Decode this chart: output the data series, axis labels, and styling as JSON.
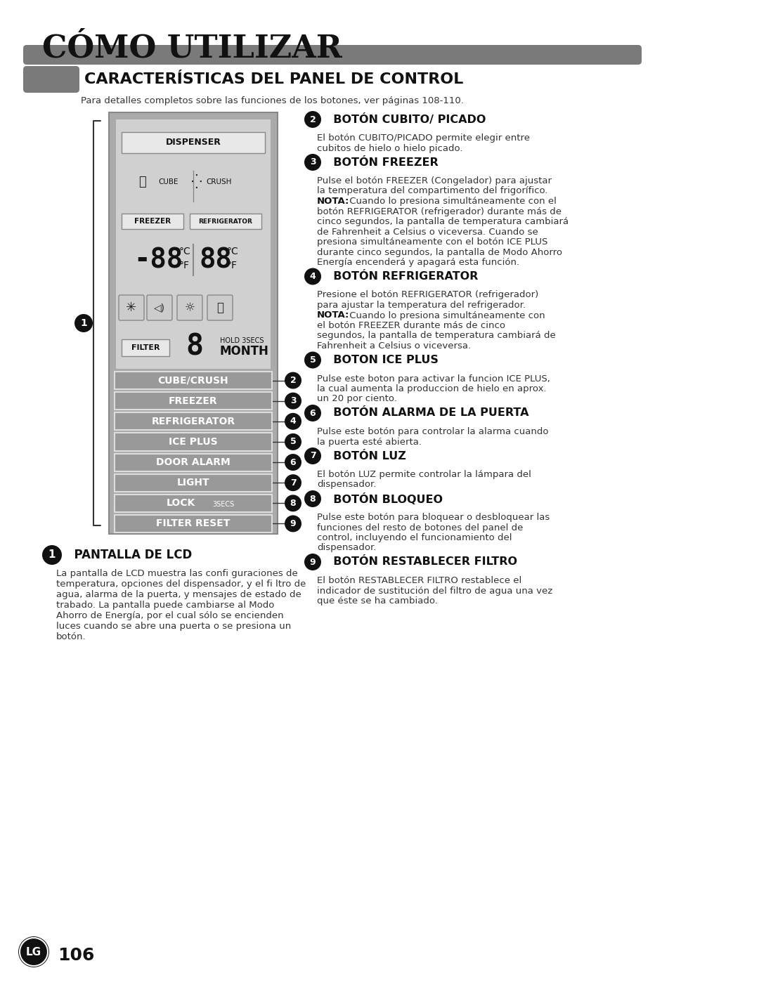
{
  "page_bg": "#ffffff",
  "header_title": "CÓMO UTILIZAR",
  "header_bar_color": "#7a7a7a",
  "section_badge_color": "#7a7a7a",
  "section_title": "CARACTERÍSTICAS DEL PANEL DE CONTROL",
  "subtitle": "Para detalles completos sobre las funciones de los botones, ver páginas 108-110.",
  "button_labels": [
    "CUBE/CRUSH",
    "FREEZER",
    "REFRIGERATOR",
    "ICE PLUS",
    "DOOR ALARM",
    "LIGHT",
    "LOCK3SECS",
    "FILTER RESET"
  ],
  "button_numbers": [
    "2",
    "3",
    "4",
    "5",
    "6",
    "7",
    "8",
    "9"
  ],
  "sections": [
    {
      "num": "2",
      "title": "BOTÓN CUBITO/ PICADO",
      "lines": [
        {
          "text": "El botón CUBITO/PICADO permite elegir entre",
          "bold": false
        },
        {
          "text": "cubitos de hielo o hielo picado.",
          "bold": false
        }
      ]
    },
    {
      "num": "3",
      "title": "BOTÓN FREEZER",
      "lines": [
        {
          "text": "Pulse el botón FREEZER (Congelador) para ajustar",
          "bold": false
        },
        {
          "text": "la temperatura del compartimento del frigorífico.",
          "bold": false
        },
        {
          "text": "NOTA: Cuando lo presiona simultáneamente con el",
          "bold": false,
          "nota": true
        },
        {
          "text": "botón REFRIGERATOR (refrigerador) durante más de",
          "bold": false
        },
        {
          "text": "cinco segundos, la pantalla de temperatura cambiará",
          "bold": false
        },
        {
          "text": "de Fahrenheit a Celsius o viceversa. Cuando se",
          "bold": false
        },
        {
          "text": "presiona simultáneamente con el botón ICE PLUS",
          "bold": false
        },
        {
          "text": "durante cinco segundos, la pantalla de Modo Ahorro",
          "bold": false
        },
        {
          "text": "Energía encenderá y apagará esta función.",
          "bold": false
        }
      ]
    },
    {
      "num": "4",
      "title": "BOTÓN REFRIGERATOR",
      "lines": [
        {
          "text": "Presione el botón REFRIGERATOR (refrigerador)",
          "bold": false
        },
        {
          "text": "para ajustar la temperatura del refrigerador.",
          "bold": false
        },
        {
          "text": "NOTA: Cuando lo presiona simultáneamente con",
          "bold": false,
          "nota": true
        },
        {
          "text": "el botón FREEZER durante más de cinco",
          "bold": false
        },
        {
          "text": "segundos, la pantalla de temperatura cambiará de",
          "bold": false
        },
        {
          "text": "Fahrenheit a Celsius o viceversa.",
          "bold": false
        }
      ]
    },
    {
      "num": "5",
      "title": "BOTON ICE PLUS",
      "lines": [
        {
          "text": "Pulse este boton para activar la funcion ICE PLUS,",
          "bold": false
        },
        {
          "text": "la cual aumenta la produccion de hielo en aprox.",
          "bold": false
        },
        {
          "text": "un 20 por ciento.",
          "bold": false
        }
      ]
    },
    {
      "num": "6",
      "title": "BOTÓN ALARMA DE LA PUERTA",
      "lines": [
        {
          "text": "Pulse este botón para controlar la alarma cuando",
          "bold": false
        },
        {
          "text": "la puerta esté abierta.",
          "bold": false
        }
      ]
    },
    {
      "num": "7",
      "title": "BOTÓN LUZ",
      "lines": [
        {
          "text": "El botón LUZ permite controlar la lámpara del",
          "bold": false
        },
        {
          "text": "dispensador.",
          "bold": false
        }
      ]
    },
    {
      "num": "8",
      "title": "BOTÓN BLOQUEO",
      "lines": [
        {
          "text": "Pulse este botón para bloquear o desbloquear las",
          "bold": false
        },
        {
          "text": "funciones del resto de botones del panel de",
          "bold": false
        },
        {
          "text": "control, incluyendo el funcionamiento del",
          "bold": false
        },
        {
          "text": "dispensador.",
          "bold": false
        }
      ]
    },
    {
      "num": "9",
      "title": "BOTÓN RESTABLECER FILTRO",
      "lines": [
        {
          "text": "El botón RESTABLECER FILTRO restablece el",
          "bold": false
        },
        {
          "text": "indicador de sustitución del filtro de agua una vez",
          "bold": false
        },
        {
          "text": "que éste se ha cambiado.",
          "bold": false
        }
      ]
    }
  ],
  "bottom_section": {
    "num": "1",
    "title": "PANTALLA DE LCD",
    "lines": [
      "La pantalla de LCD muestra las confi guraciones de",
      "temperatura, opciones del dispensador, y el fi ltro de",
      "agua, alarma de la puerta, y mensajes de estado de",
      "trabado. La pantalla puede cambiarse al Modo",
      "Ahorro de Energía, por el cual sólo se encienden",
      "luces cuando se abre una puerta o se presiona un",
      "botón."
    ]
  },
  "footer_page": "106"
}
